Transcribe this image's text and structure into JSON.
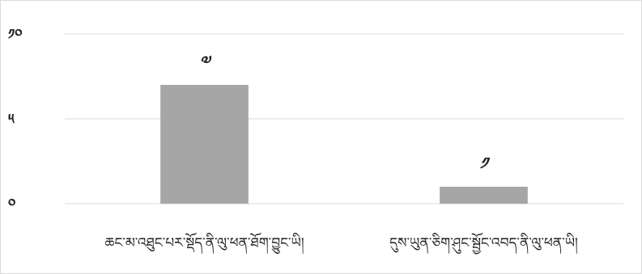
{
  "chart_data": {
    "type": "bar",
    "title": "",
    "xlabel": "",
    "ylabel": "",
    "categories": [
      "ཆང་མ་འཐུང་པར་སྡོད་ནི་ལུ་ཕན་ཐོག་བྱུང་ཡི།",
      "དུས་ཡུན་ཅིག་ཤུང་སྦྱོང་འབད་ནི་ལུ་ཕན་ཡི།"
    ],
    "values": [
      7,
      1
    ],
    "value_labels": [
      "༧",
      "༡"
    ],
    "ylim": [
      0,
      10
    ],
    "yticks": [
      0,
      5,
      10
    ],
    "ytick_labels": [
      "༠",
      "༥",
      "༡༠"
    ],
    "grid": true,
    "legend": "none",
    "bar_color": "#a6a6a6",
    "grid_color": "#d9d9d9"
  }
}
